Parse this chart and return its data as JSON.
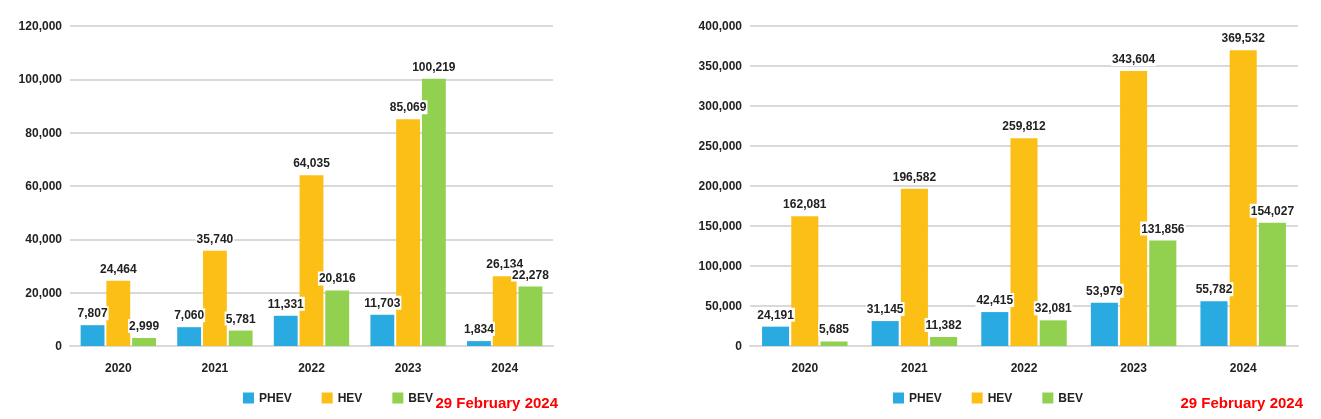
{
  "chart_data": [
    {
      "type": "bar",
      "categories": [
        "2020",
        "2021",
        "2022",
        "2023",
        "2024"
      ],
      "series": [
        {
          "name": "PHEV",
          "color": "#29abe2",
          "values": [
            7807,
            7060,
            11331,
            11703,
            1834
          ],
          "value_labels": [
            "7,807",
            "7,060",
            "11,331",
            "11,703",
            "1,834"
          ]
        },
        {
          "name": "HEV",
          "color": "#fbbf16",
          "values": [
            24464,
            35740,
            64035,
            85069,
            26134
          ],
          "value_labels": [
            "24,464",
            "35,740",
            "64,035",
            "85,069",
            "26,134"
          ]
        },
        {
          "name": "BEV",
          "color": "#92d050",
          "values": [
            2999,
            5781,
            20816,
            100219,
            22278
          ],
          "value_labels": [
            "2,999",
            "5,781",
            "20,816",
            "100,219",
            "22,278"
          ]
        }
      ],
      "ylim": [
        0,
        120000
      ],
      "yticks": [
        0,
        {
          "value": 20000,
          "label": "20,000"
        },
        {
          "value": 40000,
          "label": "40,000"
        },
        {
          "value": 60000,
          "label": "60,000"
        },
        {
          "value": 80000,
          "label": "80,000"
        },
        {
          "value": 100000,
          "label": "100,000"
        },
        {
          "value": 120000,
          "label": "120,000"
        }
      ],
      "grid": "y",
      "legend": "bottom",
      "annotations": [
        "29 February 2024"
      ]
    },
    {
      "type": "bar",
      "categories": [
        "2020",
        "2021",
        "2022",
        "2023",
        "2024"
      ],
      "series": [
        {
          "name": "PHEV",
          "color": "#29abe2",
          "values": [
            24191,
            31145,
            42415,
            53979,
            55782
          ],
          "value_labels": [
            "24,191",
            "31,145",
            "42,415",
            "53,979",
            "55,782"
          ]
        },
        {
          "name": "HEV",
          "color": "#fbbf16",
          "values": [
            162081,
            196582,
            259812,
            343604,
            369532
          ],
          "value_labels": [
            "162,081",
            "196,582",
            "259,812",
            "343,604",
            "369,532"
          ]
        },
        {
          "name": "BEV",
          "color": "#92d050",
          "values": [
            5685,
            11382,
            32081,
            131856,
            154027
          ],
          "value_labels": [
            "5,685",
            "11,382",
            "32,081",
            "131,856",
            "154,027"
          ]
        }
      ],
      "ylim": [
        0,
        400000
      ],
      "yticks": [
        0,
        {
          "value": 50000,
          "label": "50,000"
        },
        {
          "value": 100000,
          "label": "100,000"
        },
        {
          "value": 150000,
          "label": "150,000"
        },
        {
          "value": 200000,
          "label": "200,000"
        },
        {
          "value": 250000,
          "label": "250,000"
        },
        {
          "value": 300000,
          "label": "300,000"
        },
        {
          "value": 350000,
          "label": "350,000"
        },
        {
          "value": 400000,
          "label": "400,000"
        }
      ],
      "grid": "y",
      "legend": "bottom",
      "annotations": [
        "29 February 2024"
      ]
    }
  ]
}
